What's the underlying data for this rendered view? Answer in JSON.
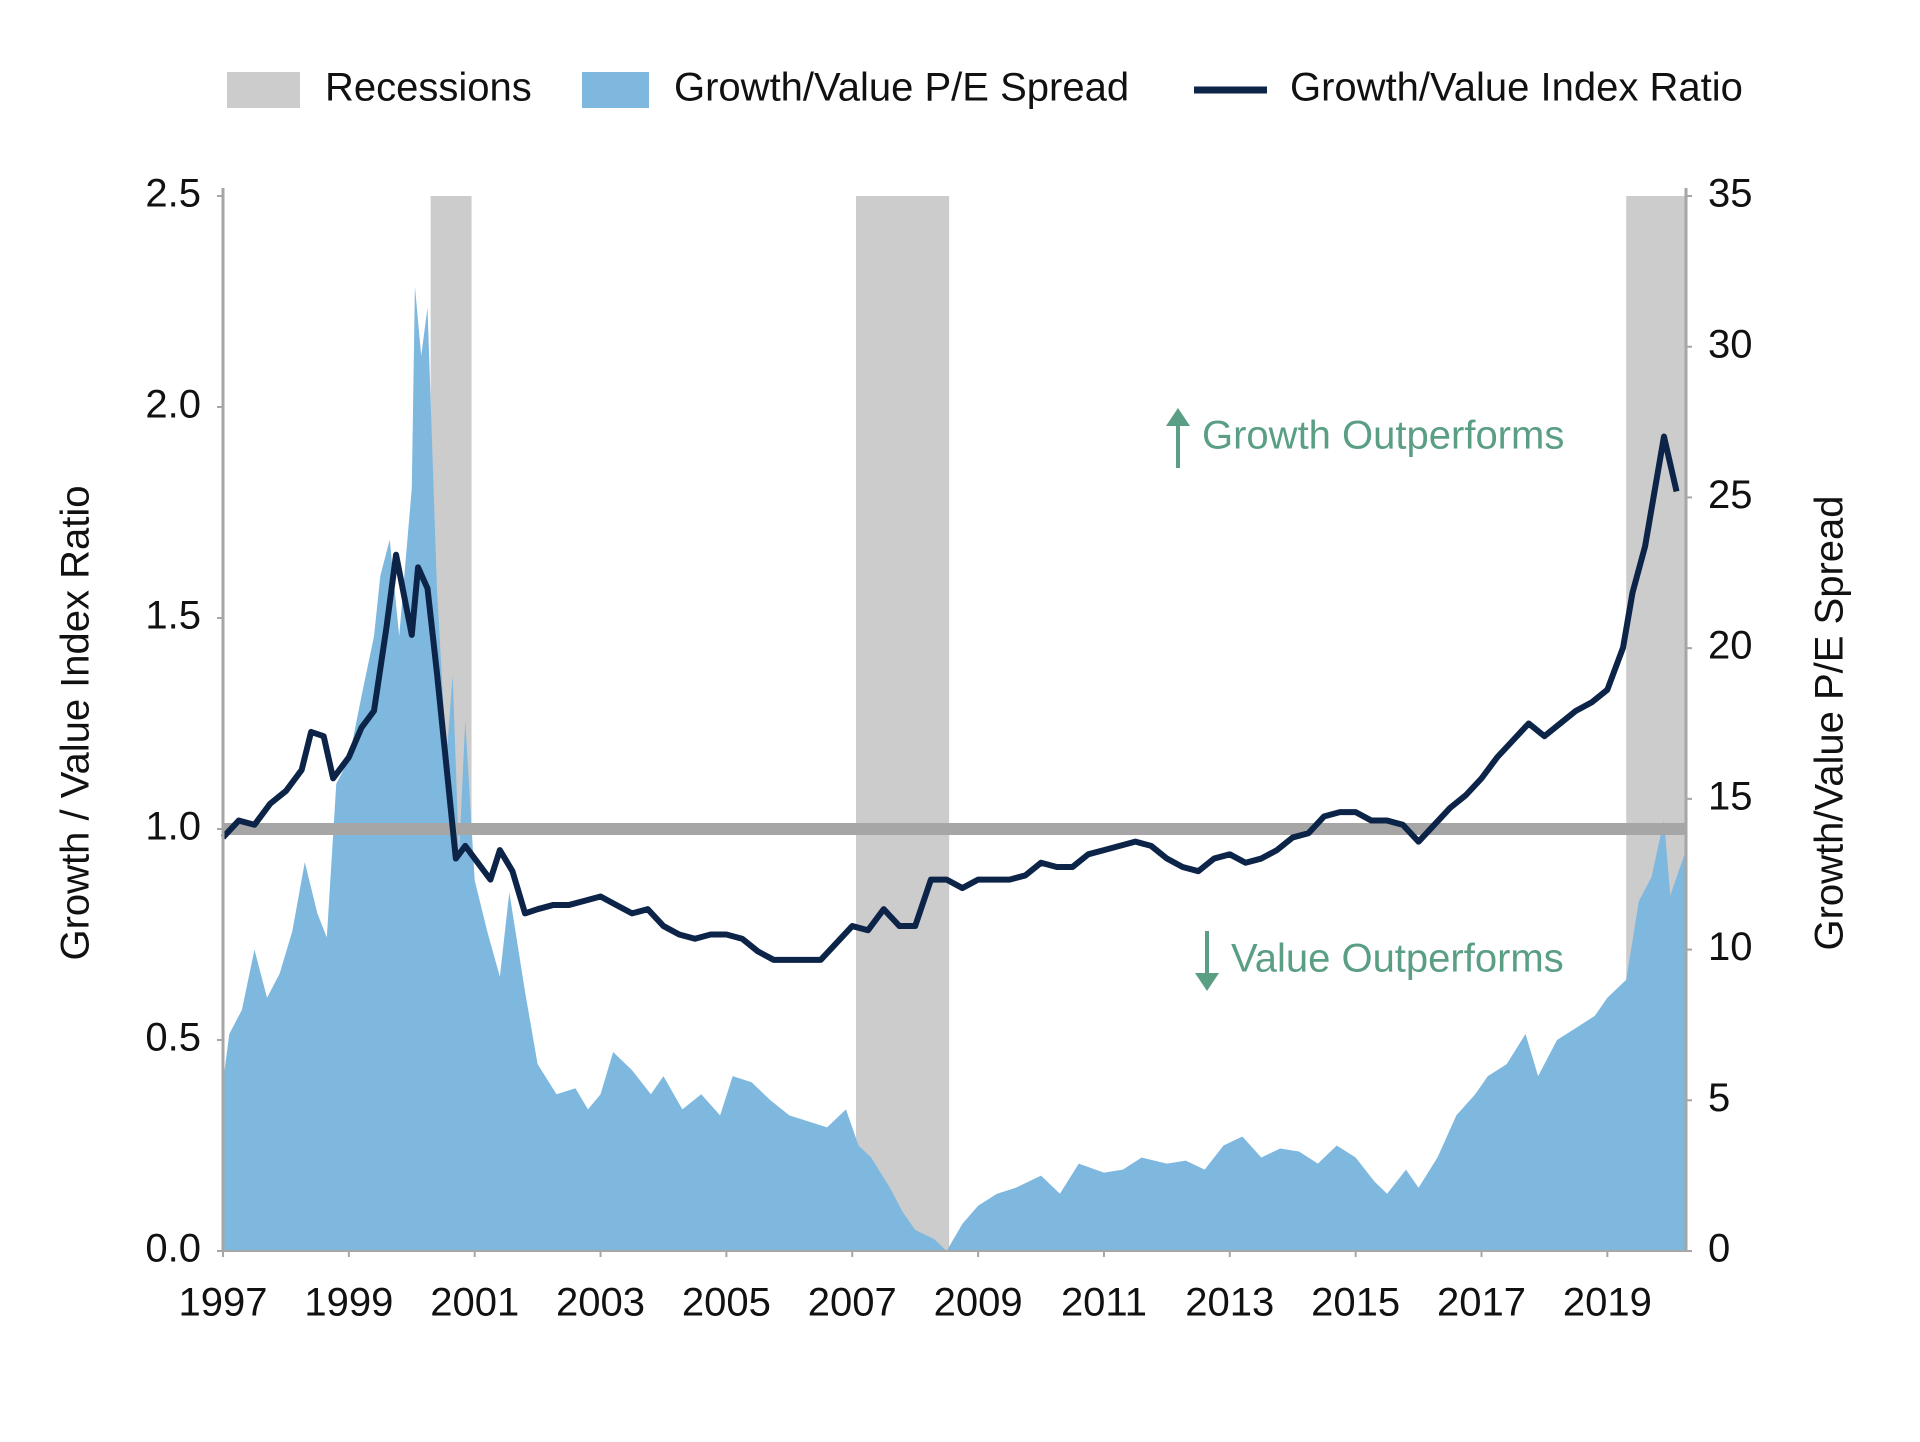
{
  "chart_data": {
    "type": "line",
    "xlim": [
      1997,
      2020.25
    ],
    "xticks": [
      1997,
      1999,
      2001,
      2003,
      2005,
      2007,
      2009,
      2011,
      2013,
      2015,
      2017,
      2019
    ],
    "ylim": [
      0,
      2.5
    ],
    "yticks": [
      {
        "value": 0,
        "label": "0.0"
      },
      0.5,
      {
        "value": 1,
        "label": "1.0"
      },
      1.5,
      {
        "value": 2,
        "label": "2.0"
      },
      2.5
    ],
    "y2lim": [
      0,
      35
    ],
    "y2ticks": [
      0,
      5,
      10,
      15,
      20,
      25,
      30,
      35
    ],
    "ylabel": "Growth / Value Index Ratio",
    "y2label": "Growth/Value P/E Spread",
    "reference_line": 1.0,
    "reference_color": "#a6a6a6",
    "recessions": {
      "name": "Recessions",
      "color": "#cccccc",
      "spans": [
        [
          2000.3,
          2000.95
        ],
        [
          2007.06,
          2008.54
        ],
        [
          2019.3,
          2020.25
        ]
      ]
    },
    "annotations": [
      {
        "text": "Growth Outperforms",
        "direction": "up"
      },
      {
        "text": "Value Outperforms",
        "direction": "down"
      }
    ],
    "annotation_color": "#5a9e84",
    "series": [
      {
        "name": "Growth/Value P/E Spread",
        "kind": "area",
        "axis": "y2",
        "color": "#7fb8df",
        "x": [
          1997.0,
          1997.1,
          1997.3,
          1997.5,
          1997.7,
          1997.9,
          1998.1,
          1998.3,
          1998.5,
          1998.65,
          1998.8,
          1999.0,
          1999.2,
          1999.4,
          1999.5,
          1999.65,
          1999.8,
          2000.0,
          2000.05,
          2000.15,
          2000.25,
          2000.4,
          2000.55,
          2000.65,
          2000.75,
          2000.85,
          2001.0,
          2001.2,
          2001.4,
          2001.55,
          2001.8,
          2002.0,
          2002.3,
          2002.6,
          2002.8,
          2003.0,
          2003.2,
          2003.5,
          2003.8,
          2004.0,
          2004.3,
          2004.6,
          2004.9,
          2005.1,
          2005.4,
          2005.7,
          2006.0,
          2006.3,
          2006.6,
          2006.9,
          2007.1,
          2007.3,
          2007.6,
          2007.8,
          2008.0,
          2008.3,
          2008.5,
          2008.75,
          2009.0,
          2009.3,
          2009.6,
          2010.0,
          2010.3,
          2010.6,
          2011.0,
          2011.3,
          2011.6,
          2012.0,
          2012.3,
          2012.6,
          2012.9,
          2013.2,
          2013.5,
          2013.8,
          2014.1,
          2014.4,
          2014.7,
          2015.0,
          2015.3,
          2015.5,
          2015.8,
          2016.0,
          2016.3,
          2016.6,
          2016.9,
          2017.1,
          2017.4,
          2017.7,
          2017.9,
          2018.2,
          2018.5,
          2018.8,
          2019.0,
          2019.3,
          2019.5,
          2019.7,
          2019.9,
          2020.0,
          2020.25
        ],
        "values": [
          5.6,
          7.2,
          8.0,
          10.0,
          8.4,
          9.2,
          10.6,
          12.9,
          11.2,
          10.4,
          15.5,
          16.3,
          18.4,
          20.4,
          22.4,
          23.6,
          20.4,
          25.3,
          32.0,
          29.7,
          31.3,
          22.0,
          16.3,
          19.1,
          13.1,
          17.6,
          12.3,
          10.6,
          9.1,
          11.9,
          8.6,
          6.2,
          5.2,
          5.4,
          4.7,
          5.2,
          6.6,
          6.0,
          5.2,
          5.8,
          4.7,
          5.2,
          4.5,
          5.8,
          5.6,
          5.0,
          4.5,
          4.3,
          4.1,
          4.7,
          3.5,
          3.1,
          2.1,
          1.3,
          0.7,
          0.4,
          0,
          0.9,
          1.5,
          1.9,
          2.1,
          2.5,
          1.9,
          2.9,
          2.6,
          2.7,
          3.1,
          2.9,
          3.0,
          2.7,
          3.5,
          3.8,
          3.1,
          3.4,
          3.3,
          2.9,
          3.5,
          3.1,
          2.3,
          1.9,
          2.7,
          2.1,
          3.1,
          4.5,
          5.2,
          5.8,
          6.2,
          7.2,
          5.8,
          7.0,
          7.4,
          7.8,
          8.4,
          9.0,
          11.6,
          12.4,
          14.3,
          11.8,
          13.3
        ]
      },
      {
        "name": "Growth/Value Index Ratio",
        "kind": "line",
        "axis": "y",
        "color": "#0d2449",
        "x": [
          1997.0,
          1997.25,
          1997.5,
          1997.75,
          1998.0,
          1998.25,
          1998.4,
          1998.6,
          1998.75,
          1999.0,
          1999.2,
          1999.4,
          1999.6,
          1999.75,
          2000.0,
          2000.1,
          2000.25,
          2000.4,
          2000.55,
          2000.7,
          2000.85,
          2001.0,
          2001.25,
          2001.4,
          2001.6,
          2001.8,
          2002.0,
          2002.25,
          2002.5,
          2002.75,
          2003.0,
          2003.25,
          2003.5,
          2003.75,
          2004.0,
          2004.25,
          2004.5,
          2004.75,
          2005.0,
          2005.25,
          2005.5,
          2005.75,
          2006.0,
          2006.25,
          2006.5,
          2006.75,
          2007.0,
          2007.25,
          2007.5,
          2007.75,
          2008.0,
          2008.25,
          2008.5,
          2008.75,
          2009.0,
          2009.25,
          2009.5,
          2009.75,
          2010.0,
          2010.25,
          2010.5,
          2010.75,
          2011.0,
          2011.25,
          2011.5,
          2011.75,
          2012.0,
          2012.25,
          2012.5,
          2012.75,
          2013.0,
          2013.25,
          2013.5,
          2013.75,
          2014.0,
          2014.25,
          2014.5,
          2014.75,
          2015.0,
          2015.25,
          2015.5,
          2015.75,
          2016.0,
          2016.25,
          2016.5,
          2016.75,
          2017.0,
          2017.25,
          2017.5,
          2017.75,
          2018.0,
          2018.25,
          2018.5,
          2018.75,
          2019.0,
          2019.25,
          2019.4,
          2019.6,
          2019.75,
          2019.9,
          2020.1
        ],
        "values": [
          0.98,
          1.02,
          1.01,
          1.06,
          1.09,
          1.14,
          1.23,
          1.22,
          1.12,
          1.17,
          1.24,
          1.28,
          1.48,
          1.65,
          1.46,
          1.62,
          1.57,
          1.37,
          1.15,
          0.93,
          0.96,
          0.93,
          0.88,
          0.95,
          0.9,
          0.8,
          0.81,
          0.82,
          0.82,
          0.83,
          0.84,
          0.82,
          0.8,
          0.81,
          0.77,
          0.75,
          0.74,
          0.75,
          0.75,
          0.74,
          0.71,
          0.69,
          0.69,
          0.69,
          0.69,
          0.73,
          0.77,
          0.76,
          0.81,
          0.77,
          0.77,
          0.88,
          0.88,
          0.86,
          0.88,
          0.88,
          0.88,
          0.89,
          0.92,
          0.91,
          0.91,
          0.94,
          0.95,
          0.96,
          0.97,
          0.96,
          0.93,
          0.91,
          0.9,
          0.93,
          0.94,
          0.92,
          0.93,
          0.95,
          0.98,
          0.99,
          1.03,
          1.04,
          1.04,
          1.02,
          1.02,
          1.01,
          0.97,
          1.01,
          1.05,
          1.08,
          1.12,
          1.17,
          1.21,
          1.25,
          1.22,
          1.25,
          1.28,
          1.3,
          1.33,
          1.43,
          1.56,
          1.67,
          1.8,
          1.93,
          1.8
        ]
      }
    ]
  }
}
